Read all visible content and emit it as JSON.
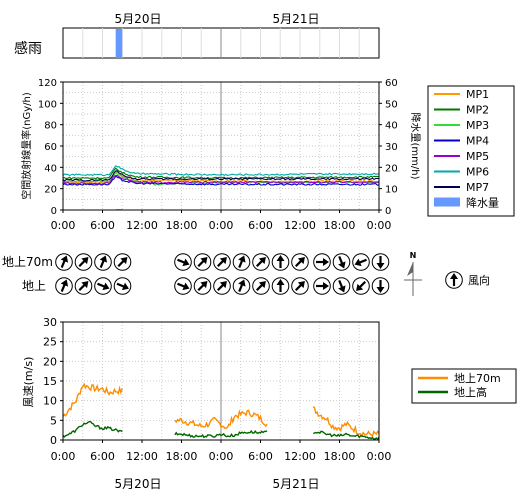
{
  "dates": [
    "5月20日",
    "5月21日"
  ],
  "rain_sense": {
    "label": "感雨",
    "events": [
      {
        "start_h": 8.0,
        "end_h": 9.0
      }
    ]
  },
  "colors": {
    "MP1": "#ff9900",
    "MP2": "#007700",
    "MP3": "#33dd33",
    "MP4": "#0000cc",
    "MP5": "#9900cc",
    "MP6": "#00aaaa",
    "MP7": "#000055",
    "rain": "#6699ff",
    "wind70": "#ff8c00",
    "windGround": "#006600"
  },
  "time_ticks": [
    "0:00",
    "6:00",
    "12:00",
    "18:00",
    "0:00",
    "6:00",
    "12:00",
    "18:00",
    "0:00"
  ],
  "wind_dir": {
    "rows": [
      {
        "label": "地上70m",
        "groups": [
          [
            "NNE",
            "NE",
            "NNE",
            "NE"
          ],
          [
            "ESE",
            "NE",
            "NE",
            "NNE"
          ],
          [
            "NE",
            "N",
            "NE"
          ],
          [
            "E",
            "SSE",
            "WSW",
            "S"
          ]
        ]
      },
      {
        "label": "地上",
        "groups": [
          [
            "NNE",
            "NE",
            "ESE",
            "ESE"
          ],
          [
            "ESE",
            "NE",
            "NE",
            "NNE"
          ],
          [
            "NE",
            "N",
            "NE"
          ],
          [
            "E",
            "SSE",
            "SW",
            "S"
          ]
        ]
      }
    ],
    "compass_label": "N",
    "legend_label": "風向",
    "legend_dir": "N"
  },
  "chart_data": [
    {
      "type": "line",
      "y_ticks": [
        "0",
        "20",
        "40",
        "60",
        "80",
        "100",
        "120"
      ],
      "y2_ticks": [
        "0",
        "10",
        "20",
        "30",
        "40",
        "50",
        "60"
      ],
      "ylabel": "空間放射線量率(nGy/h)",
      "y2label": "降水量(mm/h)",
      "ylim": [
        0,
        120
      ],
      "y2lim": [
        0,
        60
      ],
      "xlim_hours": [
        0,
        48
      ],
      "grid": true,
      "legend_position": "right",
      "series": [
        {
          "name": "MP1",
          "color_key": "MP1",
          "points": [
            [
              0,
              26
            ],
            [
              7,
              26
            ],
            [
              8,
              36
            ],
            [
              9,
              32
            ],
            [
              11,
              28
            ],
            [
              24,
              27
            ],
            [
              48,
              27
            ]
          ]
        },
        {
          "name": "MP2",
          "color_key": "MP2",
          "points": [
            [
              0,
              30
            ],
            [
              7,
              30
            ],
            [
              8,
              39
            ],
            [
              9,
              35
            ],
            [
              11,
              31
            ],
            [
              24,
              30
            ],
            [
              48,
              31
            ]
          ]
        },
        {
          "name": "MP3",
          "color_key": "MP3",
          "points": [
            [
              0,
              27
            ],
            [
              7,
              27
            ],
            [
              8,
              35
            ],
            [
              9,
              31
            ],
            [
              11,
              27
            ],
            [
              14,
              24
            ],
            [
              24,
              26
            ],
            [
              48,
              26
            ]
          ]
        },
        {
          "name": "MP4",
          "color_key": "MP4",
          "points": [
            [
              0,
              24
            ],
            [
              7,
              24
            ],
            [
              8,
              31
            ],
            [
              9,
              28
            ],
            [
              11,
              25
            ],
            [
              24,
              24
            ],
            [
              48,
              24
            ]
          ]
        },
        {
          "name": "MP5",
          "color_key": "MP5",
          "points": [
            [
              0,
              25
            ],
            [
              7,
              25
            ],
            [
              8,
              33
            ],
            [
              9,
              30
            ],
            [
              11,
              26
            ],
            [
              24,
              26
            ],
            [
              48,
              26
            ]
          ]
        },
        {
          "name": "MP6",
          "color_key": "MP6",
          "points": [
            [
              0,
              33
            ],
            [
              7,
              33
            ],
            [
              8,
              42
            ],
            [
              9,
              38
            ],
            [
              11,
              34
            ],
            [
              24,
              33
            ],
            [
              48,
              34
            ]
          ]
        },
        {
          "name": "MP7",
          "color_key": "MP7",
          "points": [
            [
              0,
              28
            ],
            [
              7,
              28
            ],
            [
              8,
              37
            ],
            [
              9,
              33
            ],
            [
              11,
              29
            ],
            [
              24,
              29
            ],
            [
              48,
              29
            ]
          ]
        }
      ],
      "rain": {
        "name": "降水量",
        "color_key": "rain",
        "bars": [
          {
            "hour": 8.5,
            "value": 0.4
          }
        ]
      }
    },
    {
      "type": "line",
      "y_ticks": [
        "0",
        "5",
        "10",
        "15",
        "20",
        "25",
        "30"
      ],
      "ylabel": "風速(m/s)",
      "ylim": [
        0,
        30
      ],
      "xlim_hours": [
        0,
        48
      ],
      "grid": true,
      "legend_position": "right",
      "series": [
        {
          "name": "地上70m",
          "color_key": "wind70",
          "segments": [
            [
              [
                0,
                6
              ],
              [
                1,
                8
              ],
              [
                2,
                10
              ],
              [
                3,
                14
              ],
              [
                4,
                13.5
              ],
              [
                5,
                13
              ],
              [
                6,
                13
              ],
              [
                7,
                12
              ],
              [
                8,
                12.5
              ],
              [
                9,
                12.5
              ]
            ],
            [
              [
                17,
                5
              ],
              [
                18,
                5
              ],
              [
                19,
                4.5
              ],
              [
                20,
                4
              ],
              [
                21,
                3.5
              ],
              [
                22,
                4
              ],
              [
                23,
                5
              ],
              [
                24,
                4
              ],
              [
                25,
                3
              ],
              [
                26,
                6
              ],
              [
                27,
                6.5
              ],
              [
                28,
                7
              ],
              [
                29,
                6.5
              ],
              [
                30,
                5.5
              ],
              [
                31,
                4
              ]
            ],
            [
              [
                38,
                8
              ],
              [
                39,
                6.5
              ],
              [
                40,
                5.5
              ],
              [
                41,
                3.5
              ],
              [
                42,
                3
              ],
              [
                43,
                4
              ],
              [
                44,
                3
              ],
              [
                45,
                2
              ],
              [
                46,
                1.5
              ],
              [
                47,
                1.5
              ],
              [
                48,
                1.5
              ]
            ]
          ]
        },
        {
          "name": "地上高",
          "color_key": "windGround",
          "segments": [
            [
              [
                0,
                1
              ],
              [
                1,
                1.5
              ],
              [
                2,
                2.5
              ],
              [
                3,
                4
              ],
              [
                4,
                4.5
              ],
              [
                5,
                3.5
              ],
              [
                6,
                3
              ],
              [
                7,
                3
              ],
              [
                8,
                2.5
              ],
              [
                9,
                2
              ]
            ],
            [
              [
                17,
                1.5
              ],
              [
                18,
                1.5
              ],
              [
                19,
                1.2
              ],
              [
                20,
                1
              ],
              [
                21,
                1
              ],
              [
                22,
                1
              ],
              [
                23,
                1
              ],
              [
                24,
                1.5
              ],
              [
                25,
                1
              ],
              [
                26,
                1.2
              ],
              [
                27,
                1.8
              ],
              [
                28,
                2
              ],
              [
                29,
                2
              ],
              [
                30,
                1.8
              ],
              [
                31,
                2
              ]
            ],
            [
              [
                38,
                2
              ],
              [
                39,
                2
              ],
              [
                40,
                1.5
              ],
              [
                41,
                1.2
              ],
              [
                42,
                1
              ],
              [
                43,
                1.5
              ],
              [
                44,
                1
              ],
              [
                45,
                1
              ],
              [
                46,
                0.8
              ],
              [
                47,
                0.5
              ],
              [
                48,
                0.5
              ]
            ]
          ]
        }
      ]
    }
  ]
}
